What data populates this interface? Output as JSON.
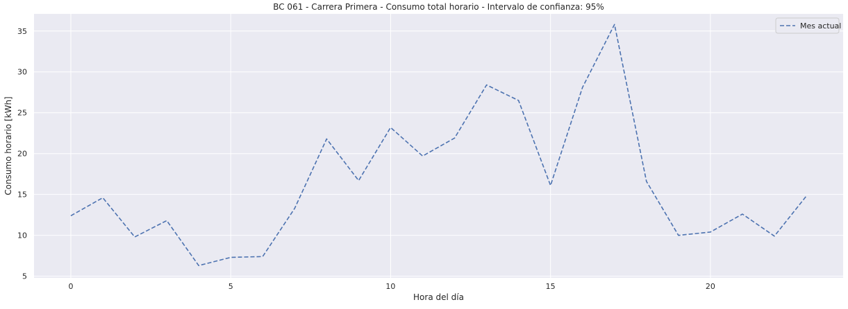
{
  "chart_data": {
    "type": "line",
    "title": "BC 061 - Carrera Primera - Consumo total horario - Intervalo de confianza: 95%",
    "xlabel": "Hora del día",
    "ylabel": "Consumo horario [kWh]",
    "xlim": [
      -1.15,
      24.15
    ],
    "ylim": [
      4.8,
      37.1
    ],
    "xticks": [
      0,
      5,
      10,
      15,
      20
    ],
    "yticks": [
      5,
      10,
      15,
      20,
      25,
      30,
      35
    ],
    "grid": true,
    "legend_position": "top-right",
    "background_color": "#eaeaf2",
    "series": [
      {
        "name": "Mes actual",
        "color": "#4c72b0",
        "line_style": "dashed",
        "x": [
          0,
          1,
          2,
          3,
          4,
          5,
          6,
          7,
          8,
          9,
          10,
          11,
          12,
          13,
          14,
          15,
          16,
          17,
          18,
          19,
          20,
          21,
          22,
          23
        ],
        "values": [
          12.4,
          14.6,
          9.8,
          11.8,
          6.3,
          7.3,
          7.4,
          13.3,
          21.8,
          16.7,
          23.2,
          19.7,
          21.9,
          28.4,
          26.5,
          16.1,
          28.1,
          35.8,
          16.6,
          10.0,
          10.4,
          12.6,
          9.9,
          14.8
        ]
      }
    ]
  }
}
